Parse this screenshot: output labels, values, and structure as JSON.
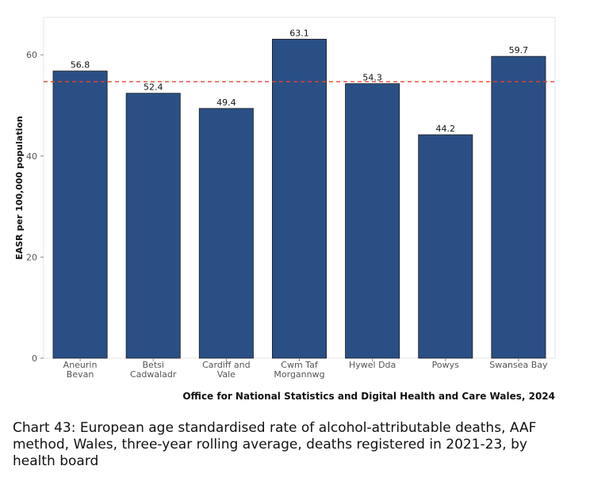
{
  "chart_data": {
    "type": "bar",
    "categories": [
      [
        "Aneurin",
        "Bevan"
      ],
      [
        "Betsi",
        "Cadwaladr"
      ],
      [
        "Cardiff and",
        "Vale"
      ],
      [
        "Cwm Taf",
        "Morgannwg"
      ],
      [
        "Hywel Dda"
      ],
      [
        "Powys"
      ],
      [
        "Swansea Bay"
      ]
    ],
    "values": [
      56.8,
      52.4,
      49.4,
      63.1,
      54.3,
      44.2,
      59.7
    ],
    "value_labels": [
      "56.8",
      "52.4",
      "49.4",
      "63.1",
      "54.3",
      "44.2",
      "59.7"
    ],
    "ylabel": "EASR per 100,000 population",
    "ylim": [
      0,
      67.4
    ],
    "yticks": [
      0,
      20,
      40,
      60
    ],
    "reference_line": {
      "value": 54.7,
      "style": "dashed",
      "color": "#e8432e"
    },
    "bar_color": "#2a4f85",
    "grid": false,
    "source_note": "Office for National Statistics and Digital Health and Care Wales, 2024"
  },
  "caption": "Chart 43: European age standardised rate of alcohol-attributable deaths, AAF method, Wales, three-year rolling average, deaths registered in 2021-23, by health board"
}
